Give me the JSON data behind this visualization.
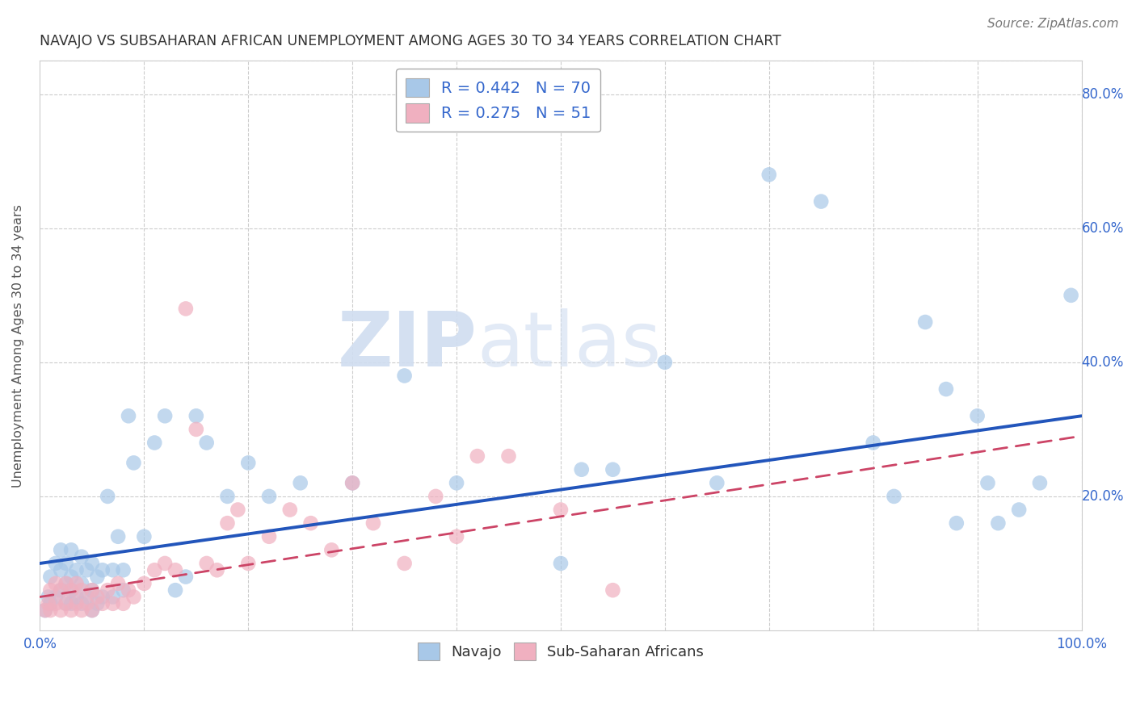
{
  "title": "NAVAJO VS SUBSAHARAN AFRICAN UNEMPLOYMENT AMONG AGES 30 TO 34 YEARS CORRELATION CHART",
  "source": "Source: ZipAtlas.com",
  "ylabel": "Unemployment Among Ages 30 to 34 years",
  "xlim": [
    0.0,
    1.0
  ],
  "ylim": [
    0.0,
    0.85
  ],
  "xticks": [
    0.0,
    0.1,
    0.2,
    0.3,
    0.4,
    0.5,
    0.6,
    0.7,
    0.8,
    0.9,
    1.0
  ],
  "xticklabels": [
    "0.0%",
    "",
    "",
    "",
    "",
    "",
    "",
    "",
    "",
    "",
    "100.0%"
  ],
  "yticks": [
    0.0,
    0.2,
    0.4,
    0.6,
    0.8
  ],
  "yticklabels": [
    "",
    "20.0%",
    "40.0%",
    "60.0%",
    "80.0%"
  ],
  "navajo_color": "#a8c8e8",
  "subsaharan_color": "#f0b0c0",
  "trend_navajo_color": "#2255bb",
  "trend_subsaharan_color": "#cc4466",
  "watermark_zip": "ZIP",
  "watermark_atlas": "atlas",
  "R_navajo": "0.442",
  "N_navajo": "70",
  "R_subsaharan": "0.275",
  "N_subsaharan": "51",
  "background_color": "#ffffff",
  "grid_color": "#cccccc",
  "title_color": "#333333",
  "axis_label_color": "#555555",
  "tick_label_color": "#3366cc",
  "navajo_x": [
    0.005,
    0.008,
    0.01,
    0.01,
    0.015,
    0.015,
    0.02,
    0.02,
    0.02,
    0.025,
    0.025,
    0.025,
    0.03,
    0.03,
    0.03,
    0.03,
    0.035,
    0.035,
    0.04,
    0.04,
    0.04,
    0.045,
    0.045,
    0.05,
    0.05,
    0.05,
    0.055,
    0.055,
    0.06,
    0.06,
    0.065,
    0.07,
    0.07,
    0.075,
    0.08,
    0.08,
    0.085,
    0.09,
    0.1,
    0.11,
    0.12,
    0.13,
    0.14,
    0.15,
    0.16,
    0.18,
    0.2,
    0.22,
    0.25,
    0.3,
    0.35,
    0.4,
    0.5,
    0.52,
    0.55,
    0.6,
    0.65,
    0.7,
    0.75,
    0.8,
    0.82,
    0.85,
    0.87,
    0.88,
    0.9,
    0.91,
    0.92,
    0.94,
    0.96,
    0.99
  ],
  "navajo_y": [
    0.03,
    0.05,
    0.04,
    0.08,
    0.05,
    0.1,
    0.06,
    0.09,
    0.12,
    0.04,
    0.07,
    0.1,
    0.04,
    0.06,
    0.08,
    0.12,
    0.05,
    0.09,
    0.04,
    0.07,
    0.11,
    0.05,
    0.09,
    0.03,
    0.06,
    0.1,
    0.04,
    0.08,
    0.05,
    0.09,
    0.2,
    0.05,
    0.09,
    0.14,
    0.06,
    0.09,
    0.32,
    0.25,
    0.14,
    0.28,
    0.32,
    0.06,
    0.08,
    0.32,
    0.28,
    0.2,
    0.25,
    0.2,
    0.22,
    0.22,
    0.38,
    0.22,
    0.1,
    0.24,
    0.24,
    0.4,
    0.22,
    0.68,
    0.64,
    0.28,
    0.2,
    0.46,
    0.36,
    0.16,
    0.32,
    0.22,
    0.16,
    0.18,
    0.22,
    0.5
  ],
  "subsaharan_x": [
    0.005,
    0.008,
    0.01,
    0.01,
    0.015,
    0.015,
    0.02,
    0.02,
    0.025,
    0.025,
    0.03,
    0.03,
    0.035,
    0.035,
    0.04,
    0.04,
    0.045,
    0.05,
    0.05,
    0.055,
    0.06,
    0.065,
    0.07,
    0.075,
    0.08,
    0.085,
    0.09,
    0.1,
    0.11,
    0.12,
    0.13,
    0.14,
    0.15,
    0.16,
    0.17,
    0.18,
    0.19,
    0.2,
    0.22,
    0.24,
    0.26,
    0.28,
    0.3,
    0.32,
    0.35,
    0.38,
    0.4,
    0.42,
    0.45,
    0.5,
    0.55
  ],
  "subsaharan_y": [
    0.03,
    0.04,
    0.03,
    0.06,
    0.04,
    0.07,
    0.03,
    0.06,
    0.04,
    0.07,
    0.03,
    0.06,
    0.04,
    0.07,
    0.03,
    0.06,
    0.04,
    0.03,
    0.06,
    0.05,
    0.04,
    0.06,
    0.04,
    0.07,
    0.04,
    0.06,
    0.05,
    0.07,
    0.09,
    0.1,
    0.09,
    0.48,
    0.3,
    0.1,
    0.09,
    0.16,
    0.18,
    0.1,
    0.14,
    0.18,
    0.16,
    0.12,
    0.22,
    0.16,
    0.1,
    0.2,
    0.14,
    0.26,
    0.26,
    0.18,
    0.06
  ],
  "trend_navajo_x0": 0.0,
  "trend_navajo_y0": 0.1,
  "trend_navajo_x1": 1.0,
  "trend_navajo_y1": 0.32,
  "trend_sub_x0": 0.0,
  "trend_sub_y0": 0.05,
  "trend_sub_x1": 1.0,
  "trend_sub_y1": 0.29
}
